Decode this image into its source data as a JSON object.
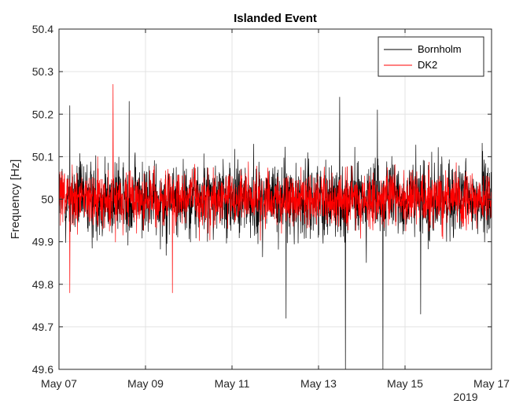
{
  "chart_data": {
    "type": "line",
    "title": "Islanded Event",
    "xlabel": "",
    "ylabel": "Frequency [Hz]",
    "x_ticks": [
      "May 07",
      "May 09",
      "May 11",
      "May 13",
      "May 15",
      "May 17"
    ],
    "x_secondary_label": "2019",
    "x_range_days": [
      0,
      10
    ],
    "xlim": [
      "2019-05-07",
      "2019-05-17"
    ],
    "ylim": [
      49.6,
      50.4
    ],
    "y_ticks": [
      "49.6",
      "49.7",
      "49.8",
      "49.9",
      "50",
      "50.1",
      "50.2",
      "50.3",
      "50.4"
    ],
    "grid": true,
    "legend_position": "top-right",
    "series": [
      {
        "name": "Bornholm",
        "color": "#000000",
        "description": "high-frequency noise around 50 Hz, typical range 49.85-50.15 Hz",
        "peaks_max": [
          {
            "x": "2019-05-07",
            "y": 50.22
          },
          {
            "x": "2019-05-08",
            "y": 50.23
          },
          {
            "x": "2019-05-13",
            "y": 50.24
          },
          {
            "x": "2019-05-14",
            "y": 50.21
          }
        ],
        "dips_min": [
          {
            "x": "2019-05-12",
            "y": 49.72
          },
          {
            "x": "2019-05-13",
            "y": 49.6
          },
          {
            "x": "2019-05-14",
            "y": 49.6
          },
          {
            "x": "2019-05-15",
            "y": 49.73
          }
        ]
      },
      {
        "name": "DK2",
        "color": "#ff0000",
        "description": "high-frequency noise around 50 Hz, typical range 49.9-50.1 Hz",
        "peaks_max": [
          {
            "x": "2019-05-08",
            "y": 50.27
          }
        ],
        "dips_min": [
          {
            "x": "2019-05-07",
            "y": 49.78
          },
          {
            "x": "2019-05-09",
            "y": 49.78
          }
        ]
      }
    ]
  }
}
